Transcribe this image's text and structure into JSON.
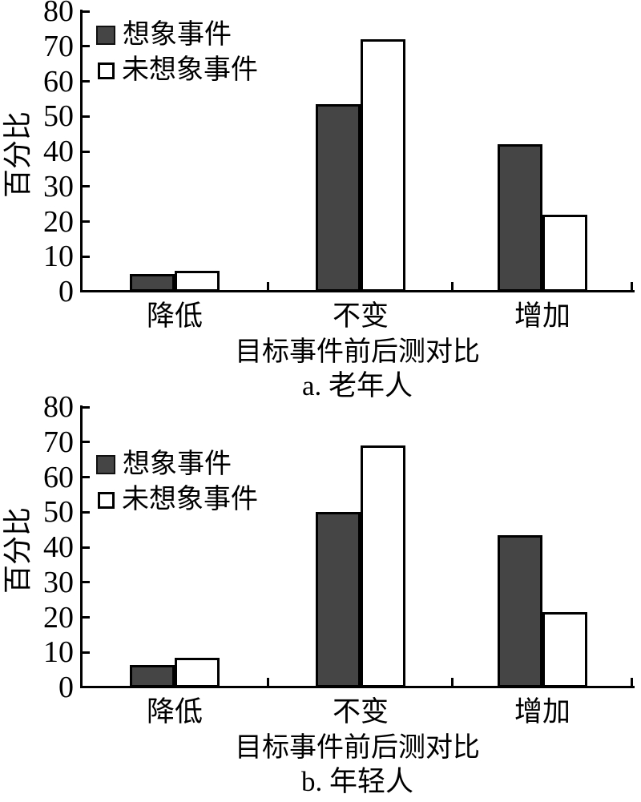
{
  "colors": {
    "bar_dark": "#454545",
    "bar_light": "#ffffff",
    "axis": "#000000",
    "background": "#ffffff"
  },
  "chart_data": [
    {
      "type": "bar",
      "title": "a. 老年人",
      "xlabel": "目标事件前后测对比",
      "ylabel": "百分比",
      "categories": [
        "降低",
        "不变",
        "增加"
      ],
      "series": [
        {
          "name": "想象事件",
          "style": "dark",
          "values": [
            5,
            53.5,
            42
          ]
        },
        {
          "name": "未想象事件",
          "style": "light",
          "values": [
            6,
            72,
            22
          ]
        }
      ],
      "ylim": [
        0,
        80
      ],
      "yticks": [
        0,
        10,
        20,
        30,
        40,
        50,
        60,
        70,
        80
      ],
      "grid": false,
      "legend_position": "top-left-inside"
    },
    {
      "type": "bar",
      "title": "b. 年轻人",
      "xlabel": "目标事件前后测对比",
      "ylabel": "百分比",
      "categories": [
        "降低",
        "不变",
        "增加"
      ],
      "series": [
        {
          "name": "想象事件",
          "style": "dark",
          "values": [
            6.5,
            50,
            43.5
          ]
        },
        {
          "name": "未想象事件",
          "style": "light",
          "values": [
            8.5,
            69,
            21.5
          ]
        }
      ],
      "ylim": [
        0,
        80
      ],
      "yticks": [
        0,
        10,
        20,
        30,
        40,
        50,
        60,
        70,
        80
      ],
      "grid": false,
      "legend_position": "top-left-inside"
    }
  ]
}
